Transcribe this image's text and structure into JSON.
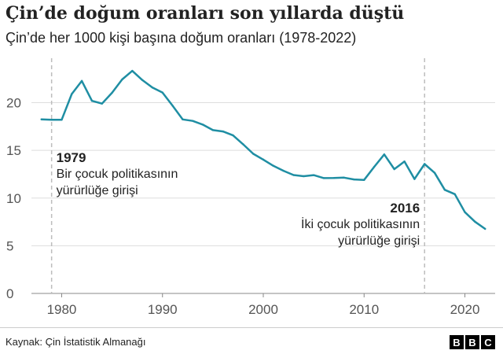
{
  "title": "Çin’de doğum oranları son yıllarda düştü",
  "subtitle": "Çin’de her 1000 kişi başına doğum oranları (1978-2022)",
  "source": "Kaynak: Çin İstatistik Almanağı",
  "logo": [
    "B",
    "B",
    "C"
  ],
  "colors": {
    "line": "#1f8ea3",
    "marker": "#bdbdbd",
    "grid": "#dddddd"
  },
  "annotations": [
    {
      "year": 1979,
      "year_label": "1979",
      "lines": [
        "Bir çocuk politikasının",
        "yürürlüğe girişi"
      ]
    },
    {
      "year": 2016,
      "year_label": "2016",
      "lines": [
        "İki çocuk politikasının",
        "yürürlüğe girişi"
      ]
    }
  ],
  "chart_data": {
    "type": "line",
    "title": "Çin’de doğum oranları son yıllarda düştü",
    "xlim": [
      1977,
      2023
    ],
    "ylim": [
      0,
      24
    ],
    "yticks": [
      0,
      5,
      10,
      15,
      20
    ],
    "xticks": [
      1980,
      1990,
      2000,
      2010,
      2020
    ],
    "grid": "horizontal",
    "x": [
      1978,
      1979,
      1980,
      1981,
      1982,
      1983,
      1984,
      1985,
      1986,
      1987,
      1988,
      1989,
      1990,
      1991,
      1992,
      1993,
      1994,
      1995,
      1996,
      1997,
      1998,
      1999,
      2000,
      2001,
      2002,
      2003,
      2004,
      2005,
      2006,
      2007,
      2008,
      2009,
      2010,
      2011,
      2012,
      2013,
      2014,
      2015,
      2016,
      2017,
      2018,
      2019,
      2020,
      2021,
      2022
    ],
    "series": [
      {
        "values": [
          18.25,
          18.21,
          18.21,
          20.91,
          22.28,
          20.19,
          19.9,
          21.04,
          22.43,
          23.33,
          22.37,
          21.58,
          21.06,
          19.68,
          18.24,
          18.09,
          17.7,
          17.12,
          16.98,
          16.57,
          15.64,
          14.64,
          14.03,
          13.38,
          12.86,
          12.41,
          12.29,
          12.4,
          12.09,
          12.1,
          12.14,
          11.95,
          11.9,
          13.27,
          14.57,
          13.03,
          13.83,
          11.99,
          13.57,
          12.64,
          10.86,
          10.41,
          8.52,
          7.52,
          6.77
        ]
      }
    ]
  }
}
